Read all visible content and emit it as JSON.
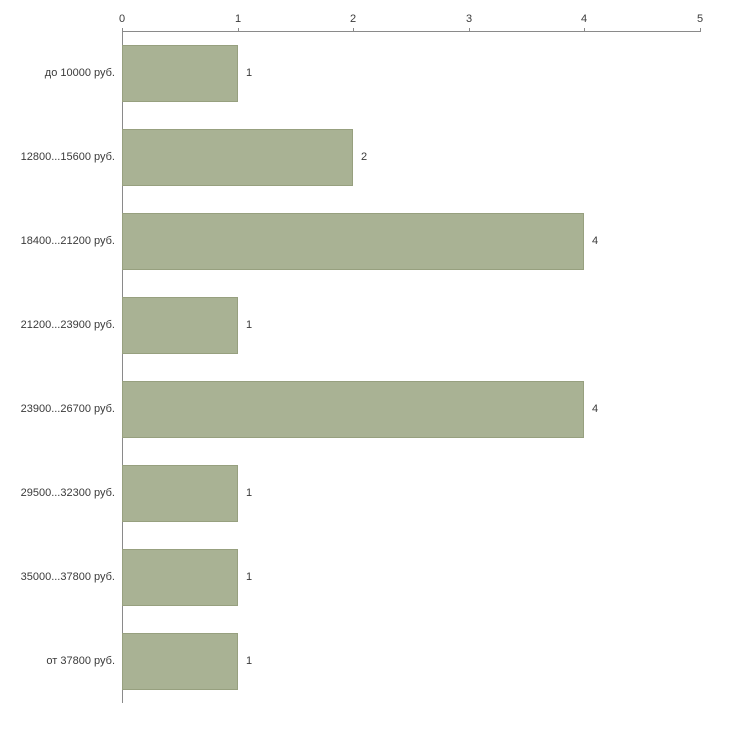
{
  "chart_data": {
    "type": "bar",
    "orientation": "horizontal",
    "title": "",
    "xlabel": "",
    "ylabel": "",
    "categories": [
      "до 10000 руб.",
      "12800...15600 руб.",
      "18400...21200 руб.",
      "21200...23900 руб.",
      "23900...26700 руб.",
      "29500...32300 руб.",
      "35000...37800 руб.",
      "от 37800 руб."
    ],
    "values": [
      1,
      2,
      4,
      1,
      4,
      1,
      1,
      1
    ],
    "value_labels": [
      "1",
      "2",
      "4",
      "1",
      "4",
      "1",
      "1",
      "1"
    ],
    "xlim": [
      0,
      5
    ],
    "x_ticks": [
      0,
      1,
      2,
      3,
      4,
      5
    ],
    "x_axis_position": "top",
    "grid": false,
    "legend_position": "none",
    "bar_color": "#a9b294",
    "bar_border_color": "#97a07f",
    "axis_color": "#8a8a8a",
    "text_color": "#3a3a3a",
    "background_color": "#ffffff"
  }
}
